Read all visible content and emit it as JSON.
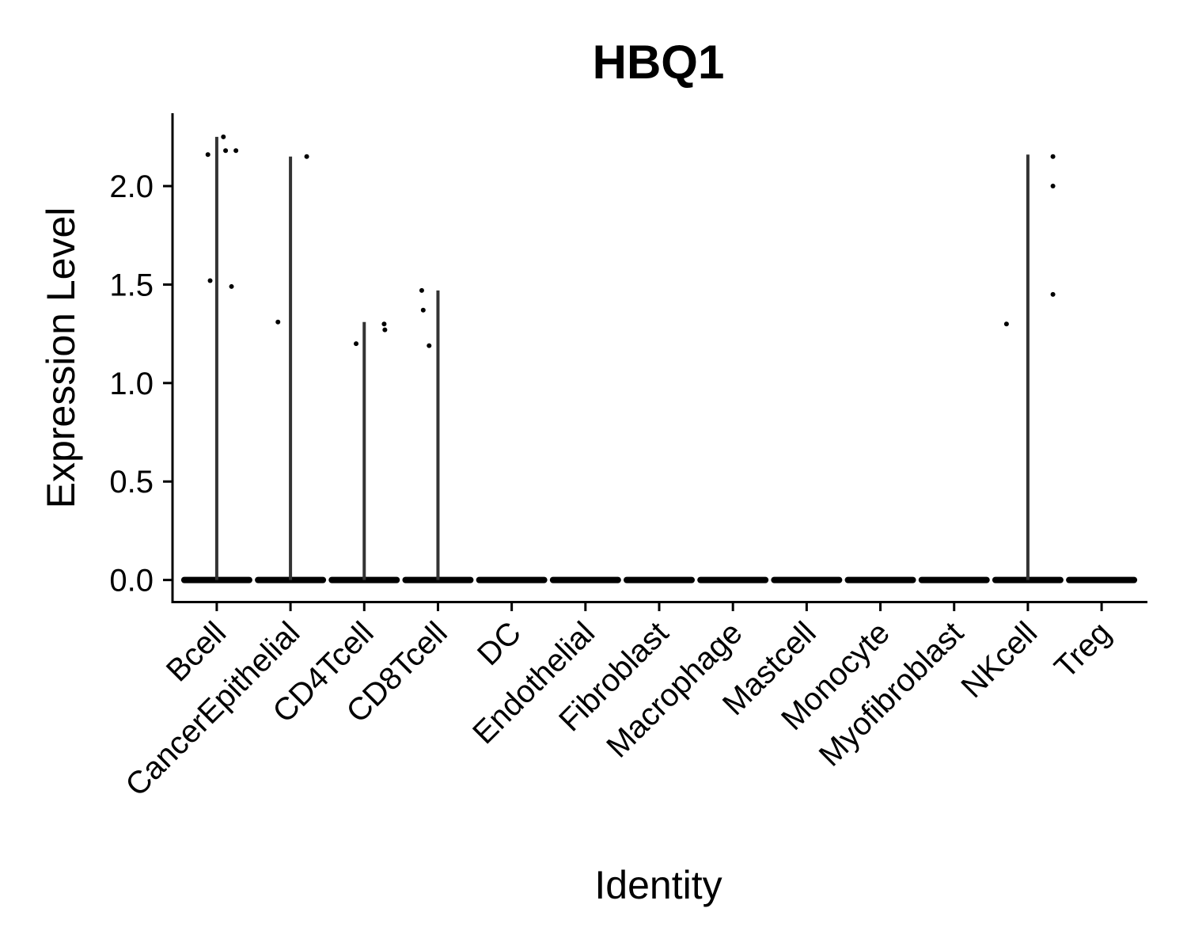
{
  "chart_data": {
    "type": "violin",
    "title": "HBQ1",
    "xlabel": "Identity",
    "ylabel": "Expression Level",
    "ylim": [
      -0.11,
      2.37
    ],
    "yticks": [
      0.0,
      0.5,
      1.0,
      1.5,
      2.0
    ],
    "ytick_labels": [
      "0.0",
      "0.5",
      "1.0",
      "1.5",
      "2.0"
    ],
    "categories": [
      "Bcell",
      "CancerEpithelial",
      "CD4Tcell",
      "CD8Tcell",
      "DC",
      "Endothelial",
      "Fibroblast",
      "Macrophage",
      "Mastcell",
      "Monocyte",
      "Myofibroblast",
      "NKcell",
      "Treg"
    ],
    "max_values": [
      2.25,
      2.15,
      1.31,
      1.47,
      0,
      0,
      0,
      0,
      0,
      0,
      0,
      2.16,
      0
    ],
    "points": [
      {
        "category": "Bcell",
        "dx": -0.12,
        "y": 2.16
      },
      {
        "category": "Bcell",
        "dx": 0.09,
        "y": 2.25
      },
      {
        "category": "Bcell",
        "dx": 0.12,
        "y": 2.18
      },
      {
        "category": "Bcell",
        "dx": 0.26,
        "y": 2.18
      },
      {
        "category": "Bcell",
        "dx": -0.09,
        "y": 1.52
      },
      {
        "category": "Bcell",
        "dx": 0.2,
        "y": 1.49
      },
      {
        "category": "CancerEpithelial",
        "dx": 0.22,
        "y": 2.15
      },
      {
        "category": "CancerEpithelial",
        "dx": -0.17,
        "y": 1.31
      },
      {
        "category": "CD4Tcell",
        "dx": -0.11,
        "y": 1.2
      },
      {
        "category": "CD4Tcell",
        "dx": 0.27,
        "y": 1.3
      },
      {
        "category": "CD4Tcell",
        "dx": 0.28,
        "y": 1.27
      },
      {
        "category": "CD8Tcell",
        "dx": -0.2,
        "y": 1.37
      },
      {
        "category": "CD8Tcell",
        "dx": -0.22,
        "y": 1.47
      },
      {
        "category": "CD8Tcell",
        "dx": -0.12,
        "y": 1.19
      },
      {
        "category": "NKcell",
        "dx": -0.29,
        "y": 1.3
      },
      {
        "category": "NKcell",
        "dx": 0.34,
        "y": 2.15
      },
      {
        "category": "NKcell",
        "dx": 0.34,
        "y": 2.0
      },
      {
        "category": "NKcell",
        "dx": 0.34,
        "y": 1.45
      }
    ]
  }
}
